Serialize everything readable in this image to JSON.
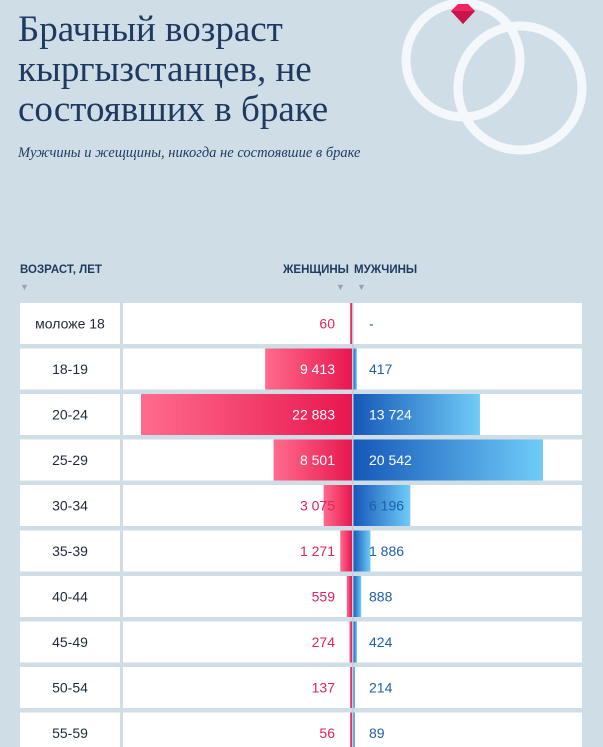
{
  "header": {
    "title": "Брачный возраст кыргызстанцев, не состоявших в браке",
    "subtitle": "Мужчины и жещщины, никогда не состоявшие в браке"
  },
  "columns": {
    "age": "ВОЗРАСТ, ЛЕТ",
    "women": "ЖЕНЩИНЫ",
    "men": "МУЖЧИНЫ"
  },
  "colors": {
    "women": "#f0245e",
    "men": "#1a6fd0",
    "background": "#cfdde6",
    "row": "#ffffff"
  },
  "chart_data": {
    "type": "bar",
    "orientation": "horizontal-diverging",
    "categories": [
      "моложе 18",
      "18-19",
      "20-24",
      "25-29",
      "30-34",
      "35-39",
      "40-44",
      "45-49",
      "50-54",
      "55-59"
    ],
    "series": [
      {
        "name": "ЖЕНЩИНЫ",
        "values": [
          60,
          9413,
          22883,
          8501,
          3075,
          1271,
          559,
          274,
          137,
          56
        ],
        "labels": [
          "60",
          "9 413",
          "22 883",
          "8 501",
          "3 075",
          "1 271",
          "559",
          "274",
          "137",
          "56"
        ]
      },
      {
        "name": "МУЖЧИНЫ",
        "values": [
          0,
          417,
          13724,
          20542,
          6196,
          1886,
          888,
          424,
          214,
          89
        ],
        "labels": [
          "-",
          "417",
          "13 724",
          "20 542",
          "6 196",
          "1 886",
          "888",
          "424",
          "214",
          "89"
        ]
      }
    ],
    "xlabel": "",
    "ylabel": "ВОЗРАСТ, ЛЕТ",
    "legend": "top"
  }
}
